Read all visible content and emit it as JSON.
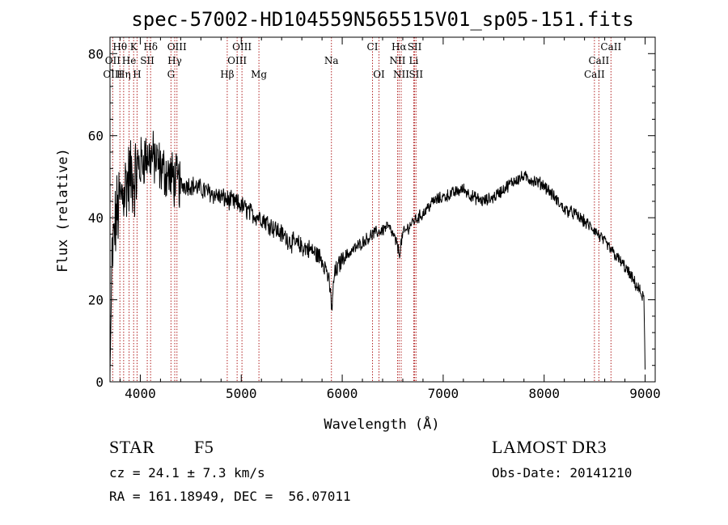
{
  "chart_data": {
    "type": "line",
    "title": "spec-57002-HD104559N565515V01_sp05-151.fits",
    "xlabel": "Wavelength (Å)",
    "ylabel": "Flux (relative)",
    "xlim": [
      3700,
      9100
    ],
    "ylim": [
      0,
      84
    ],
    "xticks": [
      4000,
      5000,
      6000,
      7000,
      8000,
      9000
    ],
    "yticks": [
      0,
      20,
      40,
      60,
      80
    ],
    "grid": false,
    "spectral_lines": [
      {
        "label": "Hθ",
        "x": 3798,
        "row": 0
      },
      {
        "label": "K",
        "x": 3934,
        "row": 0
      },
      {
        "label": "Hδ",
        "x": 4102,
        "row": 0
      },
      {
        "label": "OIII",
        "x": 4363,
        "row": 0
      },
      {
        "label": "OIII",
        "x": 5007,
        "row": 0
      },
      {
        "label": "CI",
        "x": 6300,
        "row": 0
      },
      {
        "label": "Hα",
        "x": 6563,
        "row": 0
      },
      {
        "label": "SII",
        "x": 6717,
        "row": 0
      },
      {
        "label": "CaII",
        "x": 8662,
        "row": 0
      },
      {
        "label": "OII",
        "x": 3727,
        "row": 1
      },
      {
        "label": "He",
        "x": 3889,
        "row": 1
      },
      {
        "label": "SII",
        "x": 4069,
        "row": 1
      },
      {
        "label": "Hγ",
        "x": 4341,
        "row": 1
      },
      {
        "label": "OIII",
        "x": 4959,
        "row": 1
      },
      {
        "label": "Na",
        "x": 5893,
        "row": 1
      },
      {
        "label": "NII",
        "x": 6548,
        "row": 1
      },
      {
        "label": "Li",
        "x": 6708,
        "row": 1
      },
      {
        "label": "CaII",
        "x": 8542,
        "row": 1
      },
      {
        "label": "OIII",
        "x": 3727,
        "row": 2
      },
      {
        "label": "Hη",
        "x": 3835,
        "row": 2
      },
      {
        "label": "H",
        "x": 3968,
        "row": 2
      },
      {
        "label": "G",
        "x": 4304,
        "row": 2
      },
      {
        "label": "Hβ",
        "x": 4861,
        "row": 2
      },
      {
        "label": "Mg",
        "x": 5175,
        "row": 2
      },
      {
        "label": "OI",
        "x": 6364,
        "row": 2
      },
      {
        "label": "NII",
        "x": 6584,
        "row": 2
      },
      {
        "label": "SII",
        "x": 6731,
        "row": 2
      },
      {
        "label": "CaII",
        "x": 8498,
        "row": 2
      }
    ],
    "spectrum_anchors": {
      "x": [
        3700,
        3720,
        3760,
        3800,
        3850,
        3900,
        3950,
        4000,
        4050,
        4100,
        4150,
        4200,
        4300,
        4400,
        4500,
        4600,
        4700,
        4800,
        4900,
        5000,
        5100,
        5200,
        5300,
        5400,
        5500,
        5600,
        5700,
        5800,
        5850,
        5880,
        5900,
        5920,
        6000,
        6100,
        6200,
        6300,
        6400,
        6450,
        6500,
        6550,
        6563,
        6600,
        6700,
        6800,
        6900,
        7000,
        7100,
        7200,
        7300,
        7400,
        7500,
        7600,
        7700,
        7800,
        7900,
        8000,
        8100,
        8200,
        8300,
        8400,
        8500,
        8600,
        8700,
        8800,
        8900,
        8950,
        8990,
        9000
      ],
      "y": [
        2,
        30,
        40,
        44,
        48,
        50,
        50,
        53,
        55,
        55,
        54,
        52,
        50,
        48,
        48,
        47,
        46,
        45,
        44,
        43,
        41,
        40,
        38,
        36,
        34,
        33,
        32,
        30,
        27,
        22,
        18,
        26,
        30,
        32,
        34,
        36,
        37,
        38,
        36,
        33,
        31,
        36,
        39,
        41,
        44,
        45,
        46,
        47,
        45,
        44,
        45,
        47,
        49,
        50,
        49,
        48,
        45,
        42,
        41,
        39,
        37,
        34,
        31,
        28,
        24,
        22,
        20,
        3
      ]
    },
    "spectrum_noise": [
      {
        "x0": 3700,
        "x1": 4000,
        "amp": 9
      },
      {
        "x0": 4000,
        "x1": 4400,
        "amp": 6
      },
      {
        "x0": 4400,
        "x1": 6000,
        "amp": 2.2
      },
      {
        "x0": 6000,
        "x1": 9000,
        "amp": 1.4
      }
    ]
  },
  "info": {
    "object_type": "STAR",
    "subclass": "F5",
    "survey": "LAMOST DR3",
    "cz": "cz = 24.1 ± 7.3 km/s",
    "obs_date": "Obs-Date: 20141210",
    "radec": "RA = 161.18949, DEC =  56.07011"
  },
  "colors": {
    "line_marker": "#b22222",
    "spectrum": "#000000"
  }
}
